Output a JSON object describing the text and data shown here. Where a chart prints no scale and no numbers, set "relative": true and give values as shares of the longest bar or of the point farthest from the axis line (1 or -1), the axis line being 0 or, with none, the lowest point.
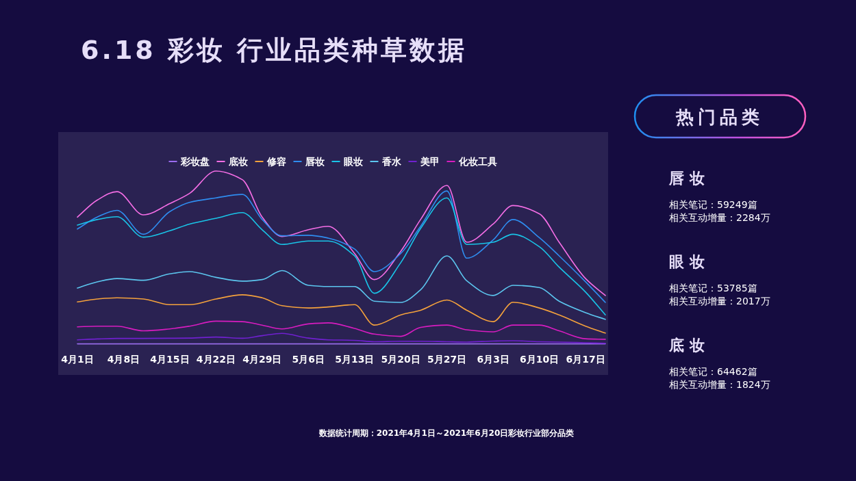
{
  "chart_data": {
    "type": "line",
    "title": "6.18 彩妆 行业品类种草数据",
    "relative": true,
    "legend": "top",
    "marker": "none",
    "line_style": "solid",
    "x": [
      "--04-01",
      "--04-04",
      "--04-07",
      "--04-11",
      "--04-15",
      "--04-18",
      "--04-22",
      "--04-26",
      "--04-29",
      "--05-02",
      "--05-06",
      "--05-09",
      "--05-13",
      "--05-16",
      "--05-20",
      "--05-23",
      "--05-27",
      "--05-30",
      "--06-03",
      "--06-06",
      "--06-10",
      "--06-13",
      "--06-17",
      "--06-20"
    ],
    "xlim": [
      "--04-01",
      "--06-20"
    ],
    "xticks": [
      {
        "value": "--04-01",
        "label": "4月1日"
      },
      {
        "value": "--04-08",
        "label": "4月8日"
      },
      {
        "value": "--04-15",
        "label": "4月15日"
      },
      {
        "value": "--04-22",
        "label": "4月22日"
      },
      {
        "value": "--04-29",
        "label": "4月29日"
      },
      {
        "value": "--05-06",
        "label": "5月6日"
      },
      {
        "value": "--05-13",
        "label": "5月13日"
      },
      {
        "value": "--05-20",
        "label": "5月20日"
      },
      {
        "value": "--05-27",
        "label": "5月27日"
      },
      {
        "value": "--06-03",
        "label": "6月3日"
      },
      {
        "value": "--06-10",
        "label": "6月10日"
      },
      {
        "value": "--06-17",
        "label": "6月17日"
      }
    ],
    "series": [
      {
        "name": "彩妆盘",
        "color": "#9b6cf0",
        "values": [
          0.002,
          0.002,
          0.002,
          0.002,
          0.002,
          0.002,
          0.002,
          0.002,
          0.002,
          0.002,
          0.002,
          0.002,
          0.002,
          0.002,
          0.002,
          0.002,
          0.002,
          0.002,
          0.002,
          0.002,
          0.002,
          0.002,
          0.002,
          0.002
        ]
      },
      {
        "name": "底妆",
        "color": "#f56ee6",
        "values": [
          0.734,
          0.832,
          0.881,
          0.747,
          0.812,
          0.871,
          1.0,
          0.95,
          0.734,
          0.622,
          0.661,
          0.681,
          0.524,
          0.373,
          0.537,
          0.72,
          0.917,
          0.589,
          0.694,
          0.801,
          0.753,
          0.589,
          0.379,
          0.281
        ]
      },
      {
        "name": "修容",
        "color": "#f5a23c",
        "values": [
          0.244,
          0.261,
          0.268,
          0.261,
          0.228,
          0.228,
          0.261,
          0.285,
          0.268,
          0.222,
          0.209,
          0.215,
          0.228,
          0.11,
          0.169,
          0.196,
          0.255,
          0.196,
          0.13,
          0.242,
          0.209,
          0.169,
          0.104,
          0.064
        ]
      },
      {
        "name": "唇妆",
        "color": "#2f8df0",
        "values": [
          0.665,
          0.734,
          0.773,
          0.635,
          0.766,
          0.819,
          0.845,
          0.865,
          0.72,
          0.626,
          0.629,
          0.613,
          0.55,
          0.419,
          0.524,
          0.681,
          0.885,
          0.497,
          0.602,
          0.72,
          0.615,
          0.51,
          0.36,
          0.241
        ]
      },
      {
        "name": "眼妆",
        "color": "#19c5e8",
        "values": [
          0.688,
          0.72,
          0.736,
          0.618,
          0.655,
          0.694,
          0.727,
          0.76,
          0.661,
          0.576,
          0.596,
          0.596,
          0.51,
          0.294,
          0.471,
          0.668,
          0.845,
          0.576,
          0.589,
          0.635,
          0.563,
          0.445,
          0.301,
          0.169
        ]
      },
      {
        "name": "香水",
        "color": "#5cc6ef",
        "values": [
          0.324,
          0.36,
          0.379,
          0.369,
          0.406,
          0.419,
          0.386,
          0.364,
          0.373,
          0.425,
          0.34,
          0.333,
          0.333,
          0.248,
          0.241,
          0.314,
          0.51,
          0.366,
          0.281,
          0.34,
          0.327,
          0.248,
          0.182,
          0.143
        ]
      },
      {
        "name": "美甲",
        "color": "#7020d0",
        "values": [
          0.025,
          0.03,
          0.033,
          0.033,
          0.034,
          0.035,
          0.041,
          0.034,
          0.049,
          0.062,
          0.035,
          0.025,
          0.022,
          0.014,
          0.017,
          0.017,
          0.014,
          0.012,
          0.018,
          0.02,
          0.014,
          0.012,
          0.008,
          0.005
        ]
      },
      {
        "name": "化妆工具",
        "color": "#d81cc0",
        "values": [
          0.1,
          0.104,
          0.104,
          0.077,
          0.088,
          0.104,
          0.133,
          0.13,
          0.11,
          0.088,
          0.117,
          0.123,
          0.091,
          0.058,
          0.045,
          0.097,
          0.11,
          0.083,
          0.071,
          0.11,
          0.11,
          0.077,
          0.031,
          0.028
        ]
      }
    ],
    "annotations": [
      "热门品类",
      "唇 妆",
      "相关笔记：59249篇",
      "相关互动增量：2284万",
      "眼 妆",
      "相关笔记：53785篇",
      "相关互动增量：2017万",
      "底 妆",
      "相关笔记：64462篇",
      "相关互动增量：1824万",
      "数据统计周期：2021年4月1日～2021年6月20日彩妆行业部分品类"
    ]
  }
}
